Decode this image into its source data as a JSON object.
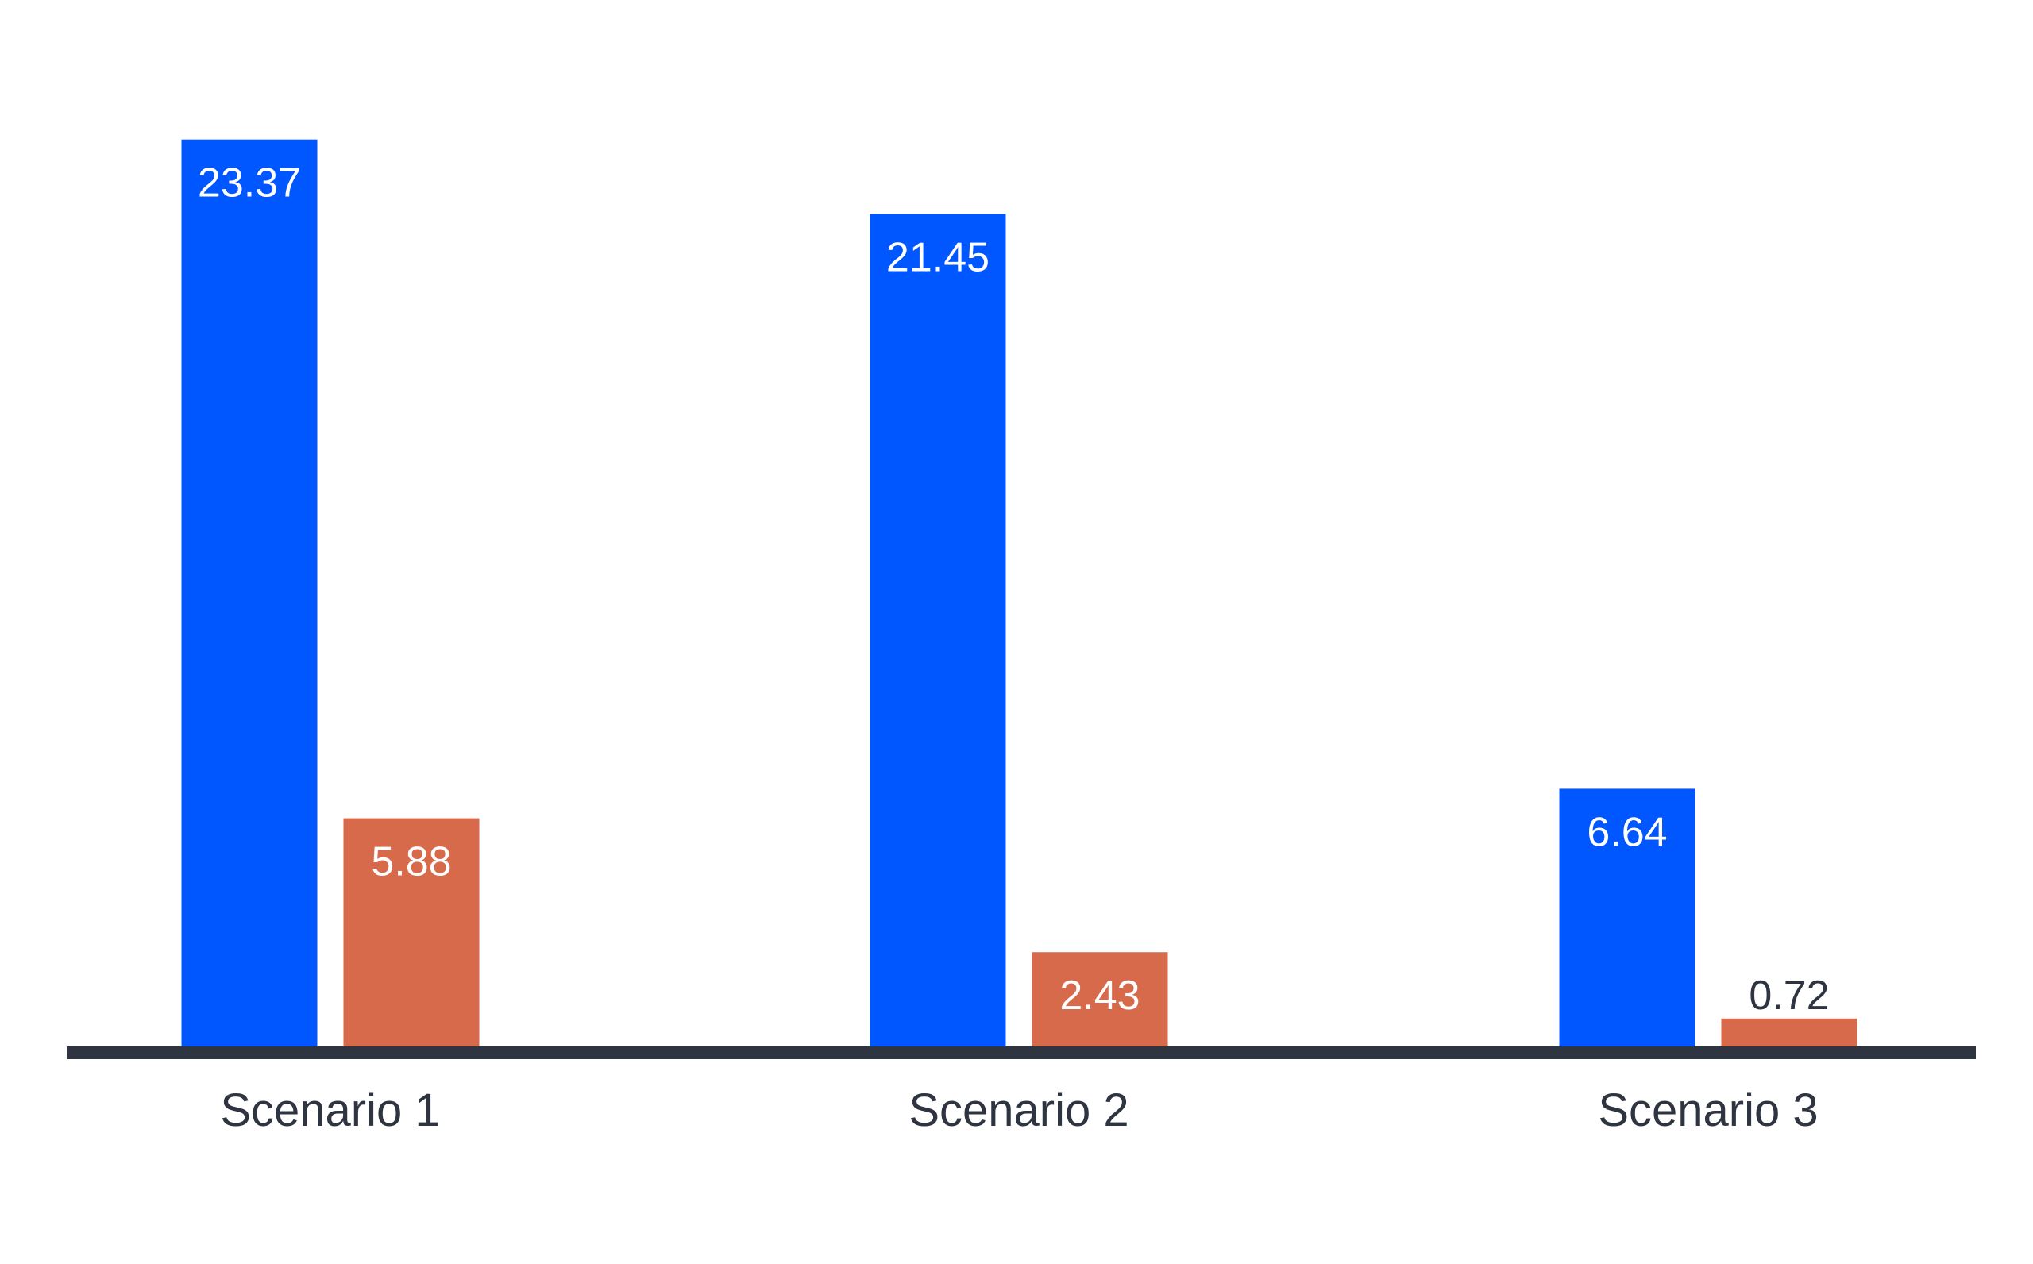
{
  "chart_data": {
    "type": "bar",
    "categories": [
      "Scenario 1",
      "Scenario 2",
      "Scenario 3"
    ],
    "series": [
      {
        "values": [
          23.37,
          21.45,
          6.64
        ],
        "color": "#0057FF",
        "value_labels": [
          "23.37",
          "21.45",
          "6.64"
        ]
      },
      {
        "values": [
          5.88,
          2.43,
          0.72
        ],
        "color": "#D66A4A",
        "value_labels": [
          "5.88",
          "2.43",
          "0.72"
        ]
      }
    ],
    "title": "",
    "xlabel": "",
    "ylabel": "",
    "ylim": [
      0,
      25
    ],
    "grid": false,
    "legend": "none",
    "axis_color": "#2E3440",
    "label_color_inside": "#FFFFFF",
    "label_color_outside": "#2E3440",
    "category_label_color": "#2E3440"
  }
}
